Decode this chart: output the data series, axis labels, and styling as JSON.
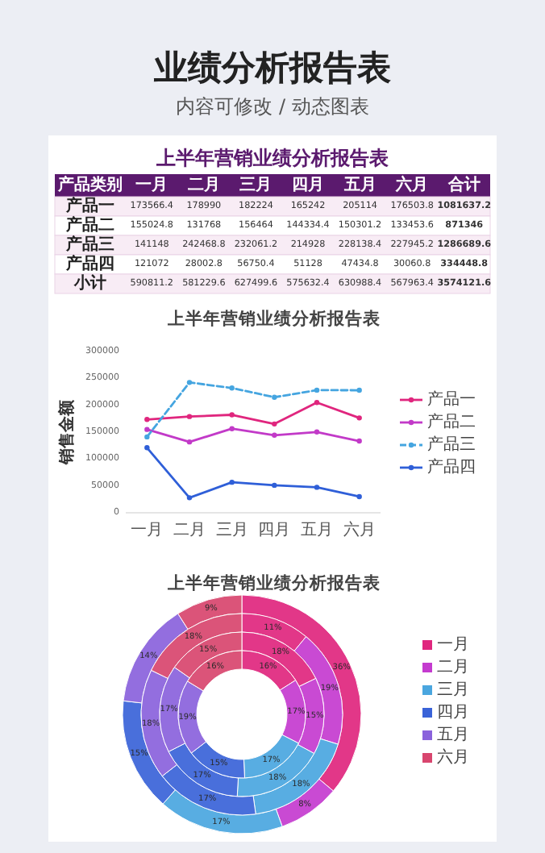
{
  "chart_data": [
    {
      "type": "other",
      "title": "上半年营销业绩分析报告表",
      "annotations": [
        "业绩分析报告表",
        "内容可修改 / 动态图表"
      ],
      "ylabel": "产品类别",
      "categories": [
        "一月",
        "二月",
        "三月",
        "四月",
        "五月",
        "六月",
        "合计"
      ],
      "y_categories": [
        "产品一",
        "产品二",
        "产品三",
        "产品四",
        "小计"
      ],
      "cell_labels": [
        [
          "173566.4",
          "178990",
          "182224",
          "165242",
          "205114",
          "176503.8",
          "1081637.2"
        ],
        [
          "155024.8",
          "131768",
          "156464",
          "144334.4",
          "150301.2",
          "133453.6",
          "871346"
        ],
        [
          "141148",
          "242468.8",
          "232061.2",
          "214928",
          "228138.4",
          "227945.2",
          "1286689.6"
        ],
        [
          "121072",
          "28002.8",
          "56750.4",
          "51128",
          "47434.8",
          "30060.8",
          "334448.8"
        ],
        [
          "590811.2",
          "581229.6",
          "627499.6",
          "575632.4",
          "630988.4",
          "567963.4",
          "3574121.6"
        ]
      ]
    },
    {
      "type": "line",
      "title": "上半年营销业绩分析报告表",
      "ylabel": "销售金额",
      "categories": [
        "一月",
        "二月",
        "三月",
        "四月",
        "五月",
        "六月"
      ],
      "ylim": [
        0,
        300000
      ],
      "yticks": [
        0,
        50000,
        100000,
        150000,
        200000,
        250000,
        300000
      ],
      "legend": "right",
      "marker": "circle",
      "series": [
        {
          "name": "产品一",
          "color": "#e0267e",
          "values": [
            173566.4,
            178990,
            182224,
            165242,
            205114,
            176503.8
          ]
        },
        {
          "name": "产品二",
          "color": "#c23ac8",
          "values": [
            155024.8,
            131768,
            156464,
            144334.4,
            150301.2,
            133453.6
          ]
        },
        {
          "name": "产品三",
          "color": "#45a5e0",
          "line_style": "dashed",
          "values": [
            141148,
            242468.8,
            232061.2,
            214928,
            228138.4,
            227945.2
          ]
        },
        {
          "name": "产品四",
          "color": "#2f5fd8",
          "values": [
            121072,
            28002.8,
            56750.4,
            51128,
            47434.8,
            30060.8
          ]
        }
      ]
    },
    {
      "type": "donut",
      "title": "上半年营销业绩分析报告表",
      "categories": [
        "一月",
        "二月",
        "三月",
        "四月",
        "五月",
        "六月"
      ],
      "colors": [
        "#e0267e",
        "#c43bcf",
        "#4aa6df",
        "#3a63d8",
        "#8a62dc",
        "#d8456e"
      ],
      "legend": "right",
      "series": [
        {
          "values": [
            36.1,
            8.4,
            17.0,
            15.3,
            14.2,
            9.0
          ],
          "value_labels": [
            "36%",
            "8%",
            "17%",
            "15%",
            "14%",
            "9%"
          ]
        },
        {
          "values": [
            11.0,
            18.8,
            18.0,
            16.7,
            17.7,
            17.8
          ],
          "value_labels": [
            "11%",
            "19%",
            "18%",
            "17%",
            "18%",
            "18%"
          ]
        },
        {
          "values": [
            17.8,
            15.1,
            18.0,
            16.6,
            17.2,
            15.3
          ],
          "value_labels": [
            "18%",
            "15%",
            "18%",
            "17%",
            "17%",
            "15%"
          ]
        },
        {
          "values": [
            16.0,
            16.5,
            16.8,
            15.3,
            19.1,
            16.3
          ],
          "value_labels": [
            "16%",
            "17%",
            "17%",
            "15%",
            "19%",
            "16%"
          ]
        }
      ]
    }
  ]
}
